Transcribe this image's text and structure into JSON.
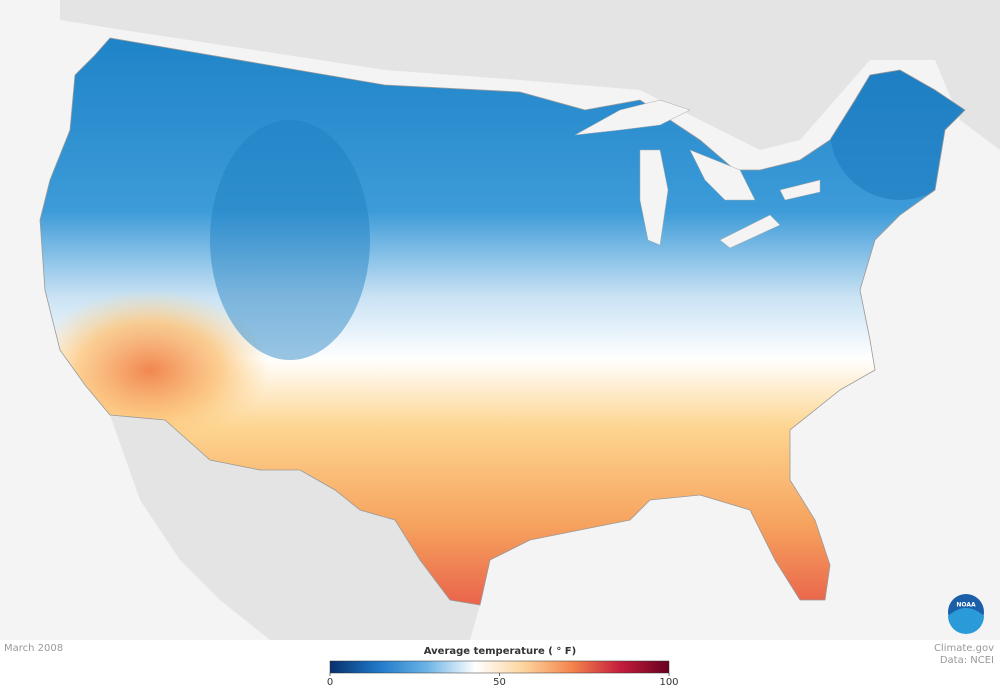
{
  "footer": {
    "date": "March 2008",
    "credit": "Climate.gov",
    "source": "Data: NCEI"
  },
  "logo": "NOAA",
  "legend": {
    "title": "Average temperature ( ° F)",
    "range": [
      0,
      100
    ],
    "ticks": [
      0,
      50,
      100
    ],
    "colors": [
      "#08306b",
      "#1f78c8",
      "#6bb3e6",
      "#ffffff",
      "#fdd49e",
      "#f4844c",
      "#c41d3c",
      "#67001f"
    ]
  }
}
